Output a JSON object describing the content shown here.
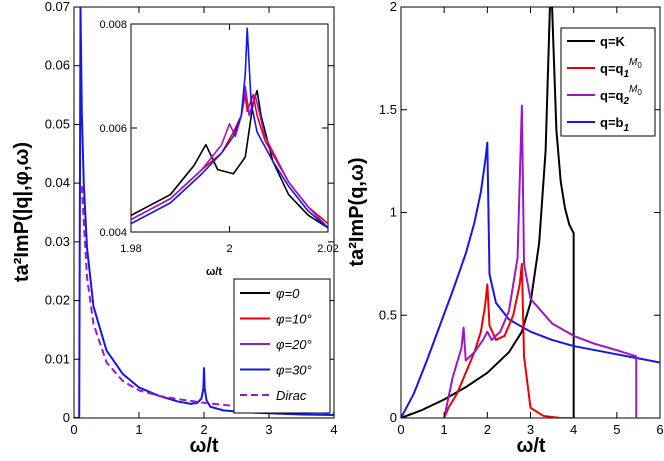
{
  "chart_data": [
    {
      "type": "line",
      "ylabel": "ta²ImP(|q|,φ,ω)",
      "xlabel": "ω/t",
      "xlim": [
        0,
        4
      ],
      "ylim": [
        0,
        0.07
      ],
      "xticks": [
        "0",
        "1",
        "2",
        "3",
        "4"
      ],
      "yticks": [
        "0",
        "0.01",
        "0.02",
        "0.03",
        "0.04",
        "0.05",
        "0.06",
        "0.07"
      ],
      "legend_position": "bottom-right",
      "legend": [
        {
          "label": "φ=0",
          "color": "#000000",
          "dash": false
        },
        {
          "label": "φ=10°",
          "color": "#ee0000",
          "dash": false
        },
        {
          "label": "φ=20°",
          "color": "#9a18c8",
          "dash": false
        },
        {
          "label": "φ=30°",
          "color": "#1515ee",
          "dash": false
        },
        {
          "label": "Dirac",
          "color": "#9a18c8",
          "dash": true
        }
      ],
      "series": [
        {
          "name": "φ=30°",
          "color": "#1515ee",
          "x": [
            0,
            0.08,
            0.1,
            0.12,
            0.15,
            0.2,
            0.3,
            0.5,
            0.75,
            1.0,
            1.3,
            1.6,
            1.8,
            1.9,
            1.96,
            1.99,
            2.0,
            2.01,
            2.04,
            2.1,
            2.3,
            2.6,
            3.0,
            3.5,
            4.0
          ],
          "y": [
            0,
            0,
            0.07,
            0.052,
            0.04,
            0.029,
            0.019,
            0.0115,
            0.0075,
            0.0052,
            0.0038,
            0.0028,
            0.0024,
            0.0026,
            0.0033,
            0.005,
            0.0085,
            0.005,
            0.003,
            0.0019,
            0.0013,
            0.001,
            0.0008,
            0.0006,
            0.0005
          ]
        },
        {
          "name": "Dirac",
          "color": "#9a18c8",
          "dash": true,
          "x": [
            0.12,
            0.2,
            0.3,
            0.5,
            0.75,
            1.0,
            1.3,
            1.6,
            2.0,
            2.5,
            3.0,
            3.5,
            4.0
          ],
          "y": [
            0.0395,
            0.024,
            0.016,
            0.0095,
            0.0063,
            0.0047,
            0.0038,
            0.0032,
            0.0026,
            0.002,
            0.0015,
            0.0011,
            0.0008
          ]
        }
      ]
    },
    {
      "type": "line",
      "inset": true,
      "xlabel": "ω/t",
      "xlim": [
        1.98,
        2.03
      ],
      "ylim": [
        0.004,
        0.009
      ],
      "xticks": [
        "1.98",
        "2",
        "2.02"
      ],
      "yticks": [
        "0.004",
        "0.006",
        "0.008"
      ],
      "series": [
        {
          "name": "φ=0",
          "color": "#000000",
          "x": [
            1.98,
            1.99,
            1.996,
            1.999,
            2.0,
            2.002,
            2.006,
            2.009,
            2.011,
            2.012,
            2.013,
            2.016,
            2.02,
            2.025,
            2.03
          ],
          "y": [
            0.0044,
            0.0049,
            0.0056,
            0.0061,
            0.0059,
            0.0055,
            0.0054,
            0.0058,
            0.0071,
            0.0074,
            0.0068,
            0.0057,
            0.0049,
            0.0044,
            0.0041
          ]
        },
        {
          "name": "φ=10°",
          "color": "#ee0000",
          "x": [
            1.98,
            1.99,
            1.998,
            2.003,
            2.006,
            2.008,
            2.009,
            2.0095,
            2.011,
            2.012,
            2.014,
            2.02,
            2.025,
            2.03
          ],
          "y": [
            0.0043,
            0.0048,
            0.0055,
            0.0059,
            0.0064,
            0.0068,
            0.0073,
            0.0069,
            0.0073,
            0.0068,
            0.0062,
            0.0052,
            0.0046,
            0.0042
          ]
        },
        {
          "name": "φ=20°",
          "color": "#9a18c8",
          "x": [
            1.98,
            1.99,
            1.998,
            2.003,
            2.005,
            2.0065,
            2.008,
            2.009,
            2.01,
            2.0115,
            2.014,
            2.02,
            2.025,
            2.03
          ],
          "y": [
            0.0043,
            0.0048,
            0.0055,
            0.0061,
            0.0066,
            0.0063,
            0.0068,
            0.0075,
            0.0068,
            0.0073,
            0.0063,
            0.0052,
            0.0046,
            0.0041
          ]
        },
        {
          "name": "φ=30°",
          "color": "#1515ee",
          "x": [
            1.98,
            1.99,
            1.998,
            2.003,
            2.006,
            2.008,
            2.009,
            2.0095,
            2.0105,
            2.012,
            2.016,
            2.02,
            2.025,
            2.03
          ],
          "y": [
            0.0042,
            0.0047,
            0.0054,
            0.0059,
            0.0063,
            0.0068,
            0.0078,
            0.0089,
            0.0071,
            0.0064,
            0.0057,
            0.0051,
            0.0045,
            0.0041
          ]
        }
      ]
    },
    {
      "type": "line",
      "ylabel": "ta²ImP(q,ω)",
      "xlabel": "ω/t",
      "xlim": [
        0,
        6
      ],
      "ylim": [
        0,
        2
      ],
      "xticks": [
        "0",
        "1",
        "2",
        "3",
        "4",
        "5",
        "6"
      ],
      "yticks": [
        "0",
        "0.5",
        "1",
        "1.5",
        "2"
      ],
      "legend_position": "top-right",
      "legend": [
        {
          "label": "q=K",
          "sub": "",
          "sup": "",
          "color": "#000000"
        },
        {
          "label": "q=q",
          "sub": "1",
          "sup": "M",
          "supsub": "0",
          "color": "#ee0000"
        },
        {
          "label": "q=q",
          "sub": "2",
          "sup": "M",
          "supsub": "0",
          "color": "#9a18c8"
        },
        {
          "label": "q=b",
          "sub": "1",
          "sup": "",
          "color": "#1515ee"
        }
      ],
      "series": [
        {
          "name": "q=K",
          "color": "#000000",
          "x": [
            0,
            0.5,
            1.0,
            1.5,
            2.0,
            2.5,
            2.8,
            3.0,
            3.2,
            3.35,
            3.45,
            3.5,
            3.6,
            3.7,
            3.8,
            3.9,
            4.0,
            4.0
          ],
          "y": [
            0,
            0.04,
            0.09,
            0.15,
            0.22,
            0.32,
            0.42,
            0.56,
            0.85,
            1.3,
            2.0,
            2.0,
            1.4,
            1.15,
            1.02,
            0.94,
            0.9,
            0
          ]
        },
        {
          "name": "q=b1",
          "color": "#1515ee",
          "x": [
            0,
            0.3,
            0.6,
            0.9,
            1.2,
            1.5,
            1.7,
            1.85,
            1.95,
            2.0,
            2.05,
            2.2,
            2.5,
            3.0,
            3.5,
            4.0,
            4.5,
            5.0,
            5.5,
            6.0
          ],
          "y": [
            0,
            0.12,
            0.28,
            0.45,
            0.62,
            0.8,
            0.95,
            1.1,
            1.25,
            1.34,
            0.7,
            0.56,
            0.48,
            0.42,
            0.38,
            0.35,
            0.33,
            0.31,
            0.29,
            0.27
          ]
        },
        {
          "name": "q=q1M0",
          "color": "#ee0000",
          "x": [
            1.0,
            1.1,
            1.3,
            1.5,
            1.7,
            1.85,
            1.95,
            2.0,
            2.05,
            2.2,
            2.4,
            2.6,
            2.75,
            2.8,
            2.85,
            3.0,
            3.3,
            3.7,
            4.0
          ],
          "y": [
            0,
            0.05,
            0.12,
            0.22,
            0.32,
            0.42,
            0.55,
            0.65,
            0.45,
            0.38,
            0.4,
            0.5,
            0.65,
            0.75,
            0.3,
            0.05,
            0.01,
            0,
            0
          ]
        },
        {
          "name": "q=q2M0",
          "color": "#9a18c8",
          "x": [
            1.0,
            1.2,
            1.4,
            1.45,
            1.5,
            1.7,
            1.9,
            2.0,
            2.1,
            2.3,
            2.5,
            2.7,
            2.8,
            2.85,
            3.0,
            3.5,
            4.0,
            4.5,
            5.0,
            5.45,
            5.45
          ],
          "y": [
            0,
            0.2,
            0.34,
            0.44,
            0.28,
            0.32,
            0.38,
            0.42,
            0.38,
            0.42,
            0.52,
            0.78,
            1.52,
            0.75,
            0.58,
            0.46,
            0.4,
            0.36,
            0.33,
            0.3,
            0
          ]
        }
      ]
    }
  ]
}
